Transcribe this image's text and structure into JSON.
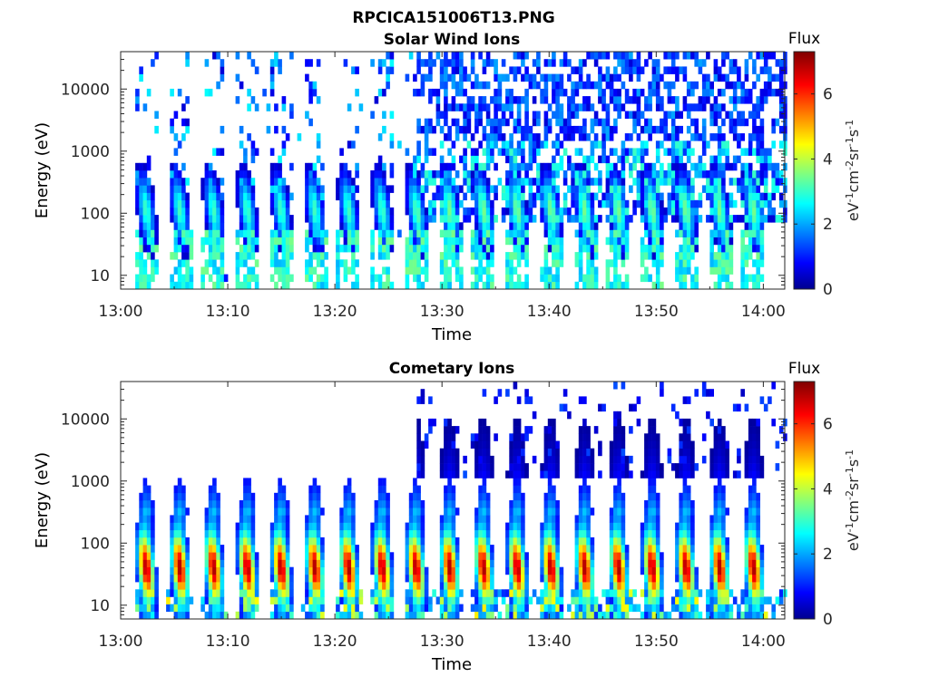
{
  "figure": {
    "title": "RPCICA151006T13.PNG"
  },
  "chart_data": [
    {
      "type": "heatmap",
      "title": "Solar Wind Ions",
      "xlabel": "Time",
      "ylabel": "Energy (eV)",
      "x_ticks": [
        "13:00",
        "13:10",
        "13:20",
        "13:30",
        "13:40",
        "13:50",
        "14:00"
      ],
      "x_range_minutes": [
        0,
        62
      ],
      "y_scale": "log",
      "y_ticks": [
        "10",
        "100",
        "1000",
        "10000"
      ],
      "y_range": [
        6,
        40000
      ],
      "colorbar": {
        "title": "Flux",
        "label": "eV-1cm-2sr-1s-1",
        "ticks": [
          "0",
          "2",
          "4",
          "6"
        ],
        "range": [
          0,
          7.3
        ],
        "colormap": "jet"
      },
      "description_profile": "Sparse periodic bursts of low-energy ions (10–300 eV, flux 2–4) before 13:27; after 13:27 a dense wide-energy band (100 eV–40 keV, flux 1–3) plus recurring low-energy bursts."
    },
    {
      "type": "heatmap",
      "title": "Cometary Ions",
      "xlabel": "Time",
      "ylabel": "Energy (eV)",
      "x_ticks": [
        "13:00",
        "13:10",
        "13:20",
        "13:30",
        "13:40",
        "13:50",
        "14:00"
      ],
      "x_range_minutes": [
        0,
        62
      ],
      "y_scale": "log",
      "y_ticks": [
        "10",
        "100",
        "1000",
        "10000"
      ],
      "y_range": [
        6,
        40000
      ],
      "colorbar": {
        "title": "Flux",
        "label": "eV-1cm-2sr-1s-1",
        "ticks": [
          "0",
          "2",
          "4",
          "6"
        ],
        "range": [
          0,
          7.3
        ],
        "colormap": "jet"
      },
      "description_profile": "Recurring bursts every ~3 min with peak flux 5–7 near 20–80 eV, extending to ~1000 eV; sparse high-energy counts above 1000 eV after 13:30."
    }
  ]
}
